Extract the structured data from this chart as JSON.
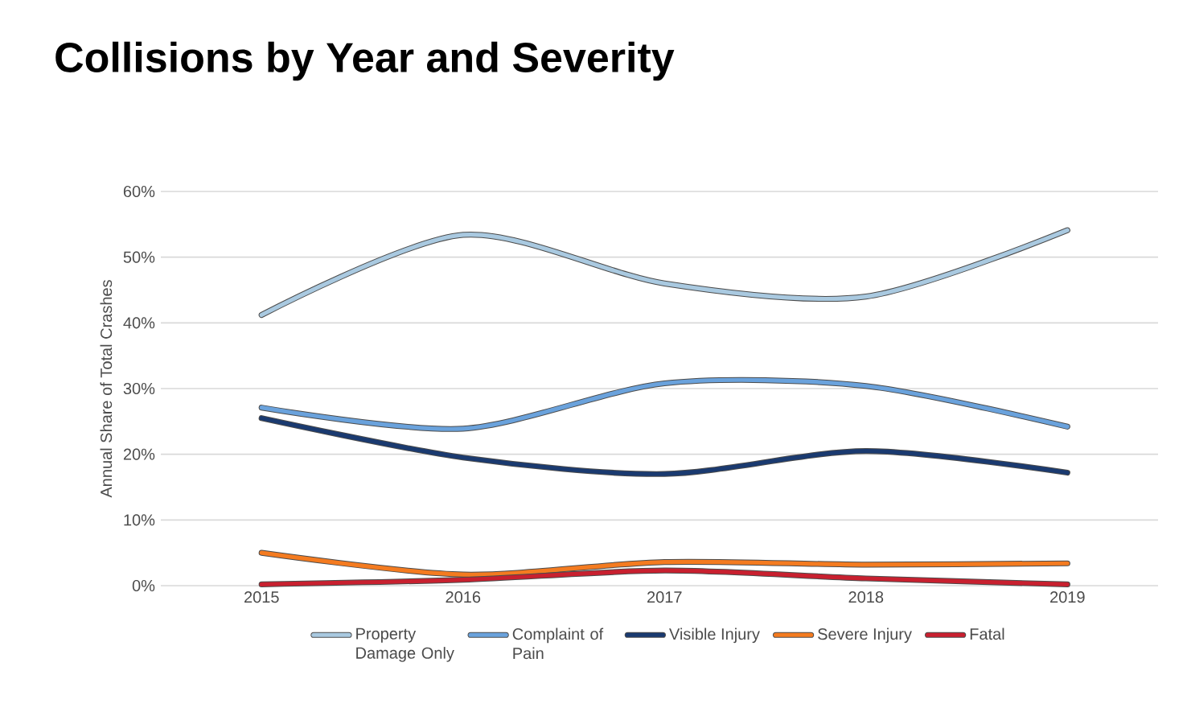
{
  "chart_data": {
    "type": "line",
    "title": "Collisions by Year and Severity",
    "ylabel": "Annual Share of Total Crashes",
    "x": [
      2015,
      2016,
      2017,
      2018,
      2019
    ],
    "series": [
      {
        "name": "Property Damage Only",
        "color": "#a9c9e0",
        "values": [
          41.2,
          53.4,
          46,
          44,
          54.1
        ]
      },
      {
        "name": "Complaint of Pain",
        "color": "#6aa2dc",
        "values": [
          27.1,
          23.9,
          30.8,
          30.4,
          24.2
        ]
      },
      {
        "name": "Visible Injury",
        "color": "#1a3a70",
        "values": [
          25.5,
          19.5,
          17,
          20.5,
          17.2
        ]
      },
      {
        "name": "Severe Injury",
        "color": "#f47b20",
        "values": [
          5,
          1.7,
          3.6,
          3.2,
          3.4
        ]
      },
      {
        "name": "Fatal",
        "color": "#c8202f",
        "values": [
          0.2,
          0.9,
          2.3,
          1.1,
          0.2
        ]
      }
    ],
    "xlim": [
      2014.5,
      2019.45
    ],
    "ylim": [
      0,
      60
    ],
    "xticks": [
      2015,
      2016,
      2017,
      2018,
      2019
    ],
    "yticks": [
      {
        "value": 0,
        "label": "0%"
      },
      {
        "value": 10,
        "label": "10%"
      },
      {
        "value": 20,
        "label": "20%"
      },
      {
        "value": 30,
        "label": "30%"
      },
      {
        "value": 40,
        "label": "40%"
      },
      {
        "value": 50,
        "label": "50%"
      },
      {
        "value": 60,
        "label": "60%"
      }
    ],
    "grid": "y",
    "legend": "bottom",
    "marker": "none",
    "line_style": "solid"
  }
}
